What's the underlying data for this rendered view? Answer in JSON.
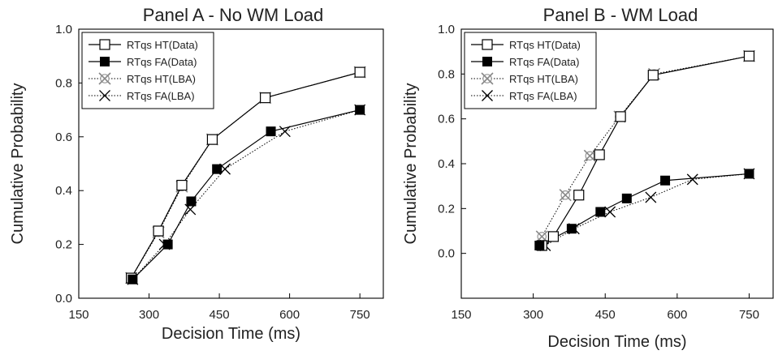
{
  "chart_data": [
    {
      "type": "line",
      "title": "Panel A - No WM Load",
      "xlabel": "Decision Time (ms)",
      "ylabel": "Cumulative Probability",
      "xlim": [
        150,
        800
      ],
      "ylim": [
        0.0,
        1.0
      ],
      "xticks": [
        "150",
        "300",
        "450",
        "600",
        "750"
      ],
      "xtick_values": [
        150,
        300,
        450,
        600,
        750
      ],
      "yticks": [
        "0.0",
        "0.2",
        "0.4",
        "0.6",
        "0.8",
        "1.0"
      ],
      "ytick_values": [
        0.0,
        0.2,
        0.4,
        0.6,
        0.8,
        1.0
      ],
      "legend_position": "top-left",
      "series": [
        {
          "name": "RTqs HT(Data)",
          "marker": "open-square",
          "line": "solid",
          "x": [
            262,
            320,
            370,
            435,
            548,
            750
          ],
          "y": [
            0.075,
            0.25,
            0.42,
            0.59,
            0.745,
            0.84
          ]
        },
        {
          "name": "RTqs FA(Data)",
          "marker": "filled-square",
          "line": "solid",
          "x": [
            265,
            340,
            390,
            445,
            560,
            750
          ],
          "y": [
            0.07,
            0.2,
            0.36,
            0.48,
            0.62,
            0.7
          ]
        },
        {
          "name": "RTqs HT(LBA)",
          "marker": "circled-x",
          "line": "dotted",
          "x": [
            262,
            320,
            370,
            435,
            548,
            750
          ],
          "y": [
            0.075,
            0.245,
            0.415,
            0.59,
            0.745,
            0.84
          ]
        },
        {
          "name": "RTqs FA(LBA)",
          "marker": "x",
          "line": "dotted",
          "x": [
            265,
            333,
            388,
            462,
            590,
            750
          ],
          "y": [
            0.07,
            0.2,
            0.33,
            0.48,
            0.62,
            0.7
          ]
        }
      ]
    },
    {
      "type": "line",
      "title": "Panel B - WM Load",
      "xlabel": "Decision Time (ms)",
      "ylabel": "Cumulative Probability",
      "xlim": [
        150,
        800
      ],
      "ylim": [
        -0.2,
        1.0
      ],
      "xticks": [
        "150",
        "300",
        "450",
        "600",
        "750"
      ],
      "xtick_values": [
        150,
        300,
        450,
        600,
        750
      ],
      "yticks": [
        "0.0",
        "0.2",
        "0.4",
        "0.6",
        "0.8",
        "1.0"
      ],
      "ytick_values": [
        0.0,
        0.2,
        0.4,
        0.6,
        0.8,
        1.0
      ],
      "legend_position": "top-left",
      "series": [
        {
          "name": "RTqs HT(Data)",
          "marker": "open-square",
          "line": "solid",
          "x": [
            318,
            342,
            395,
            438,
            482,
            550,
            750
          ],
          "y": [
            0.035,
            0.075,
            0.26,
            0.44,
            0.61,
            0.795,
            0.88
          ]
        },
        {
          "name": "RTqs FA(Data)",
          "marker": "filled-square",
          "line": "solid",
          "x": [
            313,
            380,
            440,
            495,
            575,
            750
          ],
          "y": [
            0.035,
            0.11,
            0.185,
            0.245,
            0.325,
            0.355
          ]
        },
        {
          "name": "RTqs HT(LBA)",
          "marker": "circled-x",
          "line": "dotted",
          "x": [
            318,
            367,
            418,
            480,
            552,
            750
          ],
          "y": [
            0.075,
            0.26,
            0.435,
            0.61,
            0.8,
            0.88
          ]
        },
        {
          "name": "RTqs FA(LBA)",
          "marker": "x",
          "line": "dotted",
          "x": [
            325,
            385,
            460,
            545,
            632,
            750
          ],
          "y": [
            0.035,
            0.11,
            0.185,
            0.25,
            0.33,
            0.355
          ]
        }
      ]
    }
  ]
}
